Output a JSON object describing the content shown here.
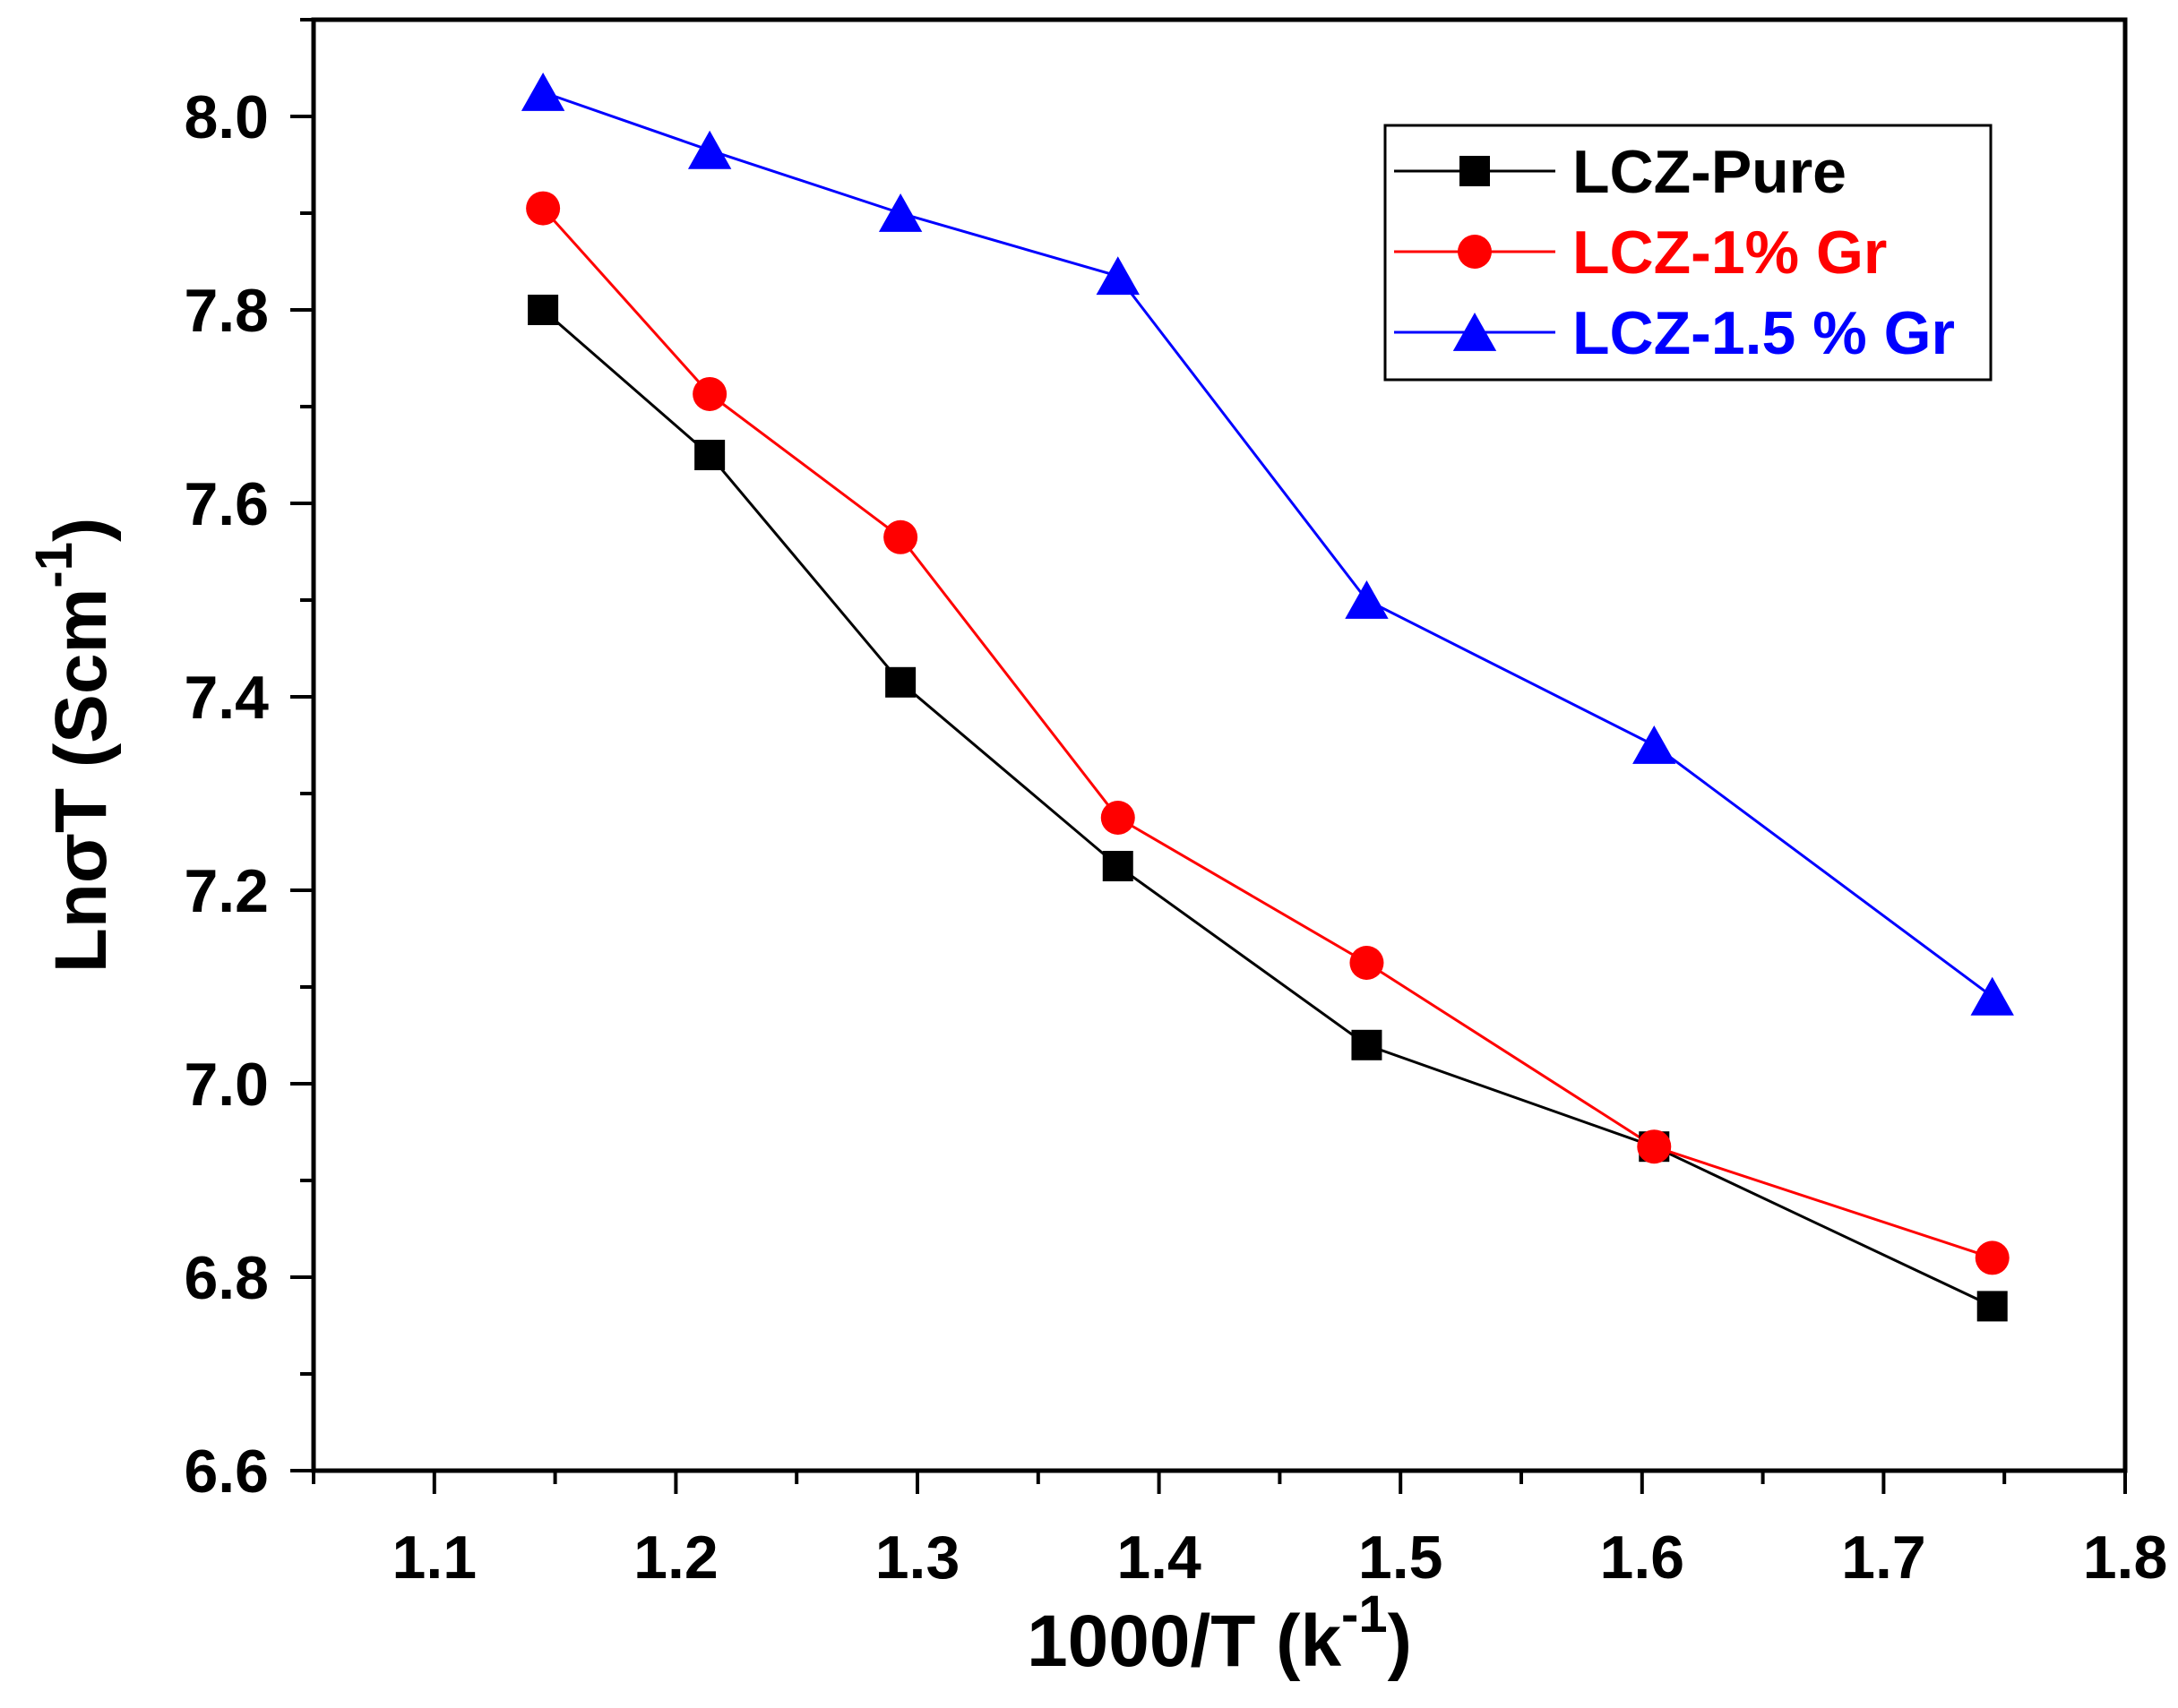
{
  "chart_data": {
    "type": "line",
    "title": "",
    "xlabel": {
      "main": "1000/T (k",
      "sup": "-1",
      "close": ")"
    },
    "ylabel": {
      "main": "LnσT (Scm",
      "sup": "-1",
      "close": ")"
    },
    "xlim": [
      1.05,
      1.8
    ],
    "ylim": [
      6.6,
      8.1
    ],
    "x_ticks": [
      "1.1",
      "1.2",
      "1.3",
      "1.4",
      "1.5",
      "1.6",
      "1.7",
      "1.8"
    ],
    "x_tick_values": [
      1.1,
      1.2,
      1.3,
      1.4,
      1.5,
      1.6,
      1.7,
      1.8
    ],
    "y_ticks": [
      "6.6",
      "6.8",
      "7.0",
      "7.2",
      "7.4",
      "7.6",
      "7.8",
      "8.0"
    ],
    "y_tick_values": [
      6.6,
      6.8,
      7.0,
      7.2,
      7.4,
      7.6,
      7.8,
      8.0
    ],
    "grid": false,
    "legend_position": "top-right",
    "x": [
      1.145,
      1.214,
      1.293,
      1.383,
      1.486,
      1.605,
      1.745
    ],
    "series": [
      {
        "name": "LCZ-Pure",
        "color": "#000000",
        "marker": "square",
        "values": [
          7.8,
          7.65,
          7.415,
          7.225,
          7.04,
          6.935,
          6.77
        ]
      },
      {
        "name": "LCZ-1% Gr",
        "color": "#ff0000",
        "marker": "circle",
        "values": [
          7.905,
          7.713,
          7.565,
          7.275,
          7.125,
          6.935,
          6.82
        ]
      },
      {
        "name": "LCZ-1.5 % Gr",
        "color": "#0000ff",
        "marker": "triangle",
        "values": [
          8.025,
          7.965,
          7.9,
          7.835,
          7.5,
          7.35,
          7.09
        ]
      }
    ]
  }
}
